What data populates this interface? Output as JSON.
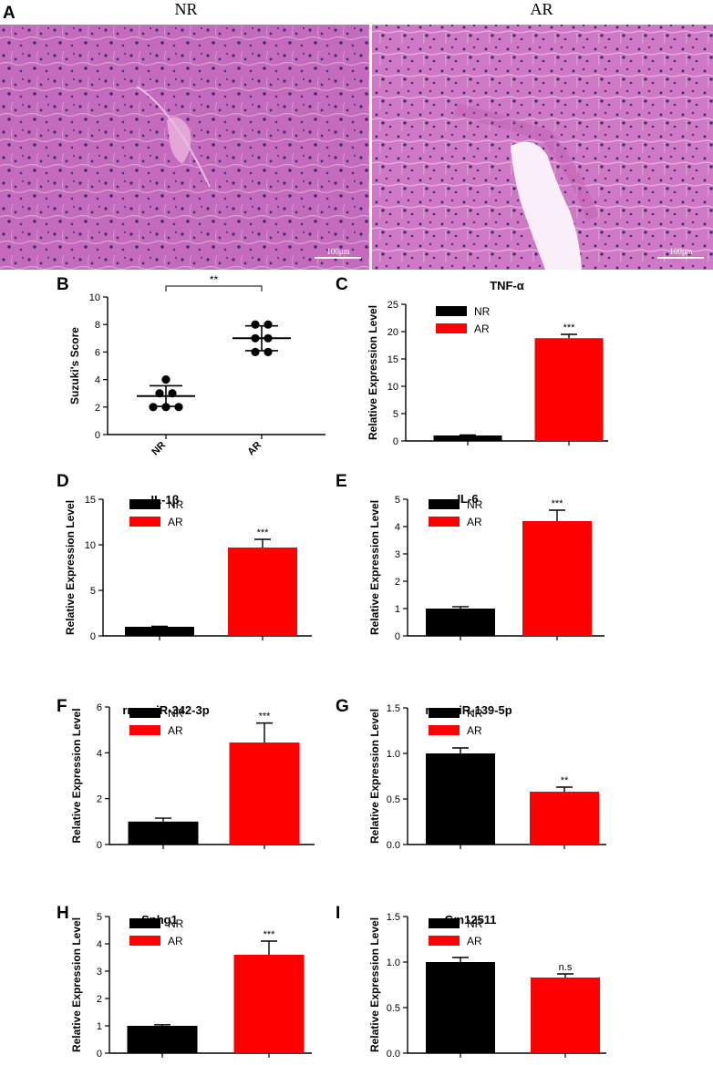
{
  "panel_a": {
    "letter": "A",
    "images": [
      {
        "label": "NR",
        "scale_label": "100μm"
      },
      {
        "label": "AR",
        "scale_label": "100μm"
      }
    ]
  },
  "chart_data": [
    {
      "id": "B",
      "type": "scatter",
      "letter": "B",
      "title": "",
      "ylabel": "Suzuki's Score",
      "ylim": [
        0,
        10
      ],
      "yticks": [
        0,
        2,
        4,
        6,
        8,
        10
      ],
      "categories": [
        "NR",
        "AR"
      ],
      "points": [
        [
          2.0,
          2.0,
          2.0,
          3.0,
          3.0,
          4.0
        ],
        [
          6.0,
          6.0,
          7.0,
          7.0,
          8.0,
          8.0
        ]
      ],
      "mean": [
        2.8,
        7.0
      ],
      "sd": [
        0.75,
        0.9
      ],
      "significance": "**"
    },
    {
      "id": "C",
      "type": "bar",
      "letter": "C",
      "title": "TNF-α",
      "ylabel": "Relative Expression Level",
      "ylim": [
        0,
        25
      ],
      "yticks": [
        0,
        5,
        10,
        15,
        20,
        25
      ],
      "categories": [
        "NR",
        "AR"
      ],
      "values": [
        1.0,
        18.8
      ],
      "errors": [
        0.1,
        0.7
      ],
      "colors": [
        "#000000",
        "#ff0000"
      ],
      "sig": [
        "",
        "***"
      ]
    },
    {
      "id": "D",
      "type": "bar",
      "letter": "D",
      "title": "IL-1β",
      "ylabel": "Relative Expression Level",
      "ylim": [
        0,
        15
      ],
      "yticks": [
        0,
        5,
        10,
        15
      ],
      "categories": [
        "NR",
        "AR"
      ],
      "values": [
        1.0,
        9.7
      ],
      "errors": [
        0.05,
        0.9
      ],
      "colors": [
        "#000000",
        "#ff0000"
      ],
      "sig": [
        "",
        "***"
      ]
    },
    {
      "id": "E",
      "type": "bar",
      "letter": "E",
      "title": "IL-6",
      "ylabel": "Relative Expression Level",
      "ylim": [
        0,
        5
      ],
      "yticks": [
        0,
        1,
        2,
        3,
        4,
        5
      ],
      "categories": [
        "NR",
        "AR"
      ],
      "values": [
        1.0,
        4.2
      ],
      "errors": [
        0.07,
        0.4
      ],
      "colors": [
        "#000000",
        "#ff0000"
      ],
      "sig": [
        "",
        "***"
      ]
    },
    {
      "id": "F",
      "type": "bar",
      "letter": "F",
      "title": "rno-miR-342-3p",
      "ylabel": "Relative Expression Level",
      "ylim": [
        0,
        6
      ],
      "yticks": [
        0,
        2,
        4,
        6
      ],
      "categories": [
        "NR",
        "AR"
      ],
      "values": [
        1.0,
        4.45
      ],
      "errors": [
        0.15,
        0.85
      ],
      "colors": [
        "#000000",
        "#ff0000"
      ],
      "sig": [
        "",
        "***"
      ]
    },
    {
      "id": "G",
      "type": "bar",
      "letter": "G",
      "title": "rno-miR-139-5p",
      "ylabel": "Relative Expression Level",
      "ylim": [
        0,
        1.5
      ],
      "yticks": [
        "0.0",
        "0.5",
        "1.0",
        "1.5"
      ],
      "categories": [
        "NR",
        "AR"
      ],
      "values": [
        1.0,
        0.58
      ],
      "errors": [
        0.06,
        0.05
      ],
      "colors": [
        "#000000",
        "#ff0000"
      ],
      "sig": [
        "",
        "**"
      ]
    },
    {
      "id": "H",
      "type": "bar",
      "letter": "H",
      "title": "Snhg1",
      "ylabel": "Relative Expression Level",
      "ylim": [
        0,
        5
      ],
      "yticks": [
        0,
        1,
        2,
        3,
        4,
        5
      ],
      "categories": [
        "NR",
        "AR"
      ],
      "values": [
        1.0,
        3.6
      ],
      "errors": [
        0.04,
        0.5
      ],
      "colors": [
        "#000000",
        "#ff0000"
      ],
      "sig": [
        "",
        "***"
      ]
    },
    {
      "id": "I",
      "type": "bar",
      "letter": "I",
      "title": "Gm12511",
      "ylabel": "Relative Expression Level",
      "ylim": [
        0,
        1.5
      ],
      "yticks": [
        "0.0",
        "0.5",
        "1.0",
        "1.5"
      ],
      "categories": [
        "NR",
        "AR"
      ],
      "values": [
        1.0,
        0.83
      ],
      "errors": [
        0.05,
        0.04
      ],
      "colors": [
        "#000000",
        "#ff0000"
      ],
      "sig": [
        "",
        "n.s"
      ]
    }
  ]
}
